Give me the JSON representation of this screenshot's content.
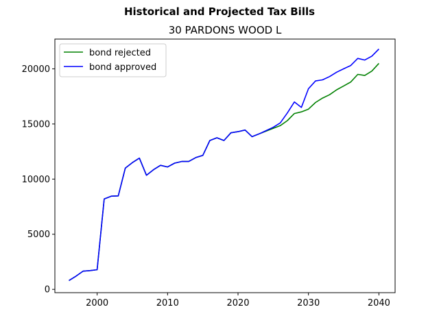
{
  "chart_data": {
    "type": "line",
    "suptitle": "Historical and Projected Tax Bills",
    "title": "30 PARDONS WOOD L",
    "xlabel": "",
    "ylabel": "",
    "xlim": [
      1994,
      2042.3
    ],
    "ylim": [
      -300,
      22700
    ],
    "xticks": [
      2000,
      2010,
      2020,
      2030,
      2040
    ],
    "yticks": [
      0,
      5000,
      10000,
      15000,
      20000
    ],
    "legend_position": "upper-left",
    "series": [
      {
        "name": "bond rejected",
        "color": "#008000",
        "x": [
          1996,
          1997,
          1998,
          1999,
          2000,
          2001,
          2002,
          2003,
          2004,
          2005,
          2006,
          2007,
          2008,
          2009,
          2010,
          2011,
          2012,
          2013,
          2014,
          2015,
          2016,
          2017,
          2018,
          2019,
          2020,
          2021,
          2022,
          2023,
          2024,
          2025,
          2026,
          2027,
          2028,
          2029,
          2030,
          2031,
          2032,
          2033,
          2034,
          2035,
          2036,
          2037,
          2038,
          2039,
          2040
        ],
        "values": [
          800,
          1200,
          1650,
          1700,
          1780,
          8200,
          8450,
          8480,
          11000,
          11500,
          11900,
          10350,
          10850,
          11250,
          11100,
          11450,
          11600,
          11600,
          11950,
          12150,
          13500,
          13750,
          13500,
          14200,
          14300,
          14450,
          13850,
          14100,
          14350,
          14600,
          14850,
          15300,
          15950,
          16100,
          16350,
          16950,
          17350,
          17650,
          18100,
          18450,
          18800,
          19500,
          19400,
          19800,
          20500
        ]
      },
      {
        "name": "bond approved",
        "color": "#0000ff",
        "x": [
          1996,
          1997,
          1998,
          1999,
          2000,
          2001,
          2002,
          2003,
          2004,
          2005,
          2006,
          2007,
          2008,
          2009,
          2010,
          2011,
          2012,
          2013,
          2014,
          2015,
          2016,
          2017,
          2018,
          2019,
          2020,
          2021,
          2022,
          2023,
          2024,
          2025,
          2026,
          2027,
          2028,
          2029,
          2030,
          2031,
          2032,
          2033,
          2034,
          2035,
          2036,
          2037,
          2038,
          2039,
          2040
        ],
        "values": [
          800,
          1200,
          1650,
          1700,
          1780,
          8200,
          8450,
          8480,
          11000,
          11500,
          11900,
          10350,
          10850,
          11250,
          11100,
          11450,
          11600,
          11600,
          11950,
          12150,
          13500,
          13750,
          13500,
          14200,
          14300,
          14450,
          13850,
          14100,
          14400,
          14700,
          15100,
          16000,
          17000,
          16500,
          18200,
          18900,
          19000,
          19300,
          19700,
          20000,
          20300,
          20950,
          20800,
          21150,
          21800
        ]
      }
    ]
  }
}
